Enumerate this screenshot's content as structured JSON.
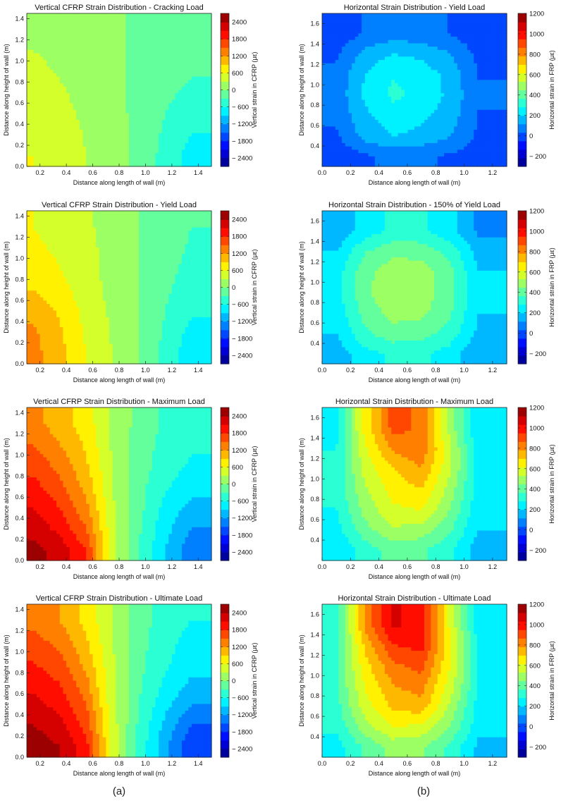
{
  "figure": {
    "captions": [
      "(a)",
      "(b)"
    ]
  },
  "chart_data": [
    {
      "type": "heatmap",
      "title": "Vertical CFRP Strain Distribution - Cracking Load",
      "xlabel": "Distance along length of wall (m)",
      "ylabel": "Distance along height of wall (m)",
      "xlim": [
        0.1,
        1.5
      ],
      "ylim": [
        0.0,
        1.45
      ],
      "xticks": [
        0.2,
        0.4,
        0.6,
        0.8,
        1.0,
        1.2,
        1.4
      ],
      "yticks": [
        0.0,
        0.2,
        0.4,
        0.6,
        0.8,
        1.0,
        1.2,
        1.4
      ],
      "colorbar": {
        "label": "Vertical strain in CFRP (με)",
        "range": [
          -2700,
          2700
        ],
        "ticks": [
          2400,
          1800,
          1200,
          600,
          0,
          -600,
          -1200,
          -1800,
          -2400
        ]
      },
      "x": [
        0.15,
        0.35,
        0.55,
        0.75,
        0.95,
        1.15,
        1.35
      ],
      "y": [
        0.1,
        0.3,
        0.5,
        0.7,
        0.9,
        1.1,
        1.3
      ],
      "z": [
        [
          600,
          450,
          300,
          150,
          -100,
          -400,
          -750
        ],
        [
          550,
          420,
          280,
          150,
          -100,
          -350,
          -600
        ],
        [
          500,
          380,
          250,
          130,
          -100,
          -300,
          -450
        ],
        [
          420,
          330,
          220,
          110,
          -100,
          -250,
          -350
        ],
        [
          350,
          280,
          200,
          100,
          -100,
          -220,
          -280
        ],
        [
          300,
          250,
          180,
          100,
          -100,
          -200,
          -250
        ],
        [
          280,
          230,
          170,
          100,
          -100,
          -200,
          -230
        ]
      ]
    },
    {
      "type": "heatmap",
      "title": "Horizontal Strain Distribution - Yield Load",
      "xlabel": "Distance along length of wall (m)",
      "ylabel": "Distance along height of wall (m)",
      "xlim": [
        0.0,
        1.3
      ],
      "ylim": [
        0.2,
        1.7
      ],
      "xticks": [
        0.0,
        0.2,
        0.4,
        0.6,
        0.8,
        1.0,
        1.2
      ],
      "yticks": [
        0.4,
        0.6,
        0.8,
        1.0,
        1.2,
        1.4,
        1.6
      ],
      "colorbar": {
        "label": "Horizontal strain in FRP (με)",
        "range": [
          -300,
          1200
        ],
        "ticks": [
          1200,
          1000,
          800,
          600,
          400,
          200,
          0,
          -200
        ]
      },
      "x": [
        0.1,
        0.3,
        0.5,
        0.7,
        0.9,
        1.1
      ],
      "y": [
        0.3,
        0.5,
        0.7,
        0.9,
        1.1,
        1.3,
        1.5
      ],
      "z": [
        [
          -20,
          20,
          60,
          50,
          20,
          -10
        ],
        [
          20,
          150,
          200,
          180,
          120,
          20
        ],
        [
          50,
          180,
          250,
          220,
          160,
          30
        ],
        [
          60,
          220,
          300,
          260,
          180,
          40
        ],
        [
          50,
          200,
          280,
          250,
          170,
          30
        ],
        [
          20,
          150,
          200,
          180,
          120,
          10
        ],
        [
          -30,
          40,
          80,
          60,
          30,
          -20
        ]
      ]
    },
    {
      "type": "heatmap",
      "title": "Vertical CFRP Strain Distribution - Yield Load",
      "xlabel": "Distance along length of wall (m)",
      "ylabel": "Distance along height of wall (m)",
      "xlim": [
        0.1,
        1.5
      ],
      "ylim": [
        0.0,
        1.45
      ],
      "xticks": [
        0.2,
        0.4,
        0.6,
        0.8,
        1.0,
        1.2,
        1.4
      ],
      "yticks": [
        0.0,
        0.2,
        0.4,
        0.6,
        0.8,
        1.0,
        1.2,
        1.4
      ],
      "colorbar": {
        "label": "Vertical strain in CFRP (με)",
        "range": [
          -2700,
          2700
        ],
        "ticks": [
          2400,
          1800,
          1200,
          600,
          0,
          -600,
          -1200,
          -1800,
          -2400
        ]
      },
      "x": [
        0.15,
        0.35,
        0.55,
        0.75,
        0.95,
        1.15,
        1.35
      ],
      "y": [
        0.1,
        0.3,
        0.5,
        0.7,
        0.9,
        1.1,
        1.3
      ],
      "z": [
        [
          1300,
          1000,
          600,
          300,
          0,
          -400,
          -800
        ],
        [
          1250,
          950,
          550,
          250,
          0,
          -350,
          -700
        ],
        [
          1100,
          850,
          500,
          250,
          0,
          -300,
          -550
        ],
        [
          900,
          700,
          450,
          200,
          0,
          -250,
          -450
        ],
        [
          750,
          600,
          400,
          200,
          0,
          -220,
          -380
        ],
        [
          650,
          550,
          380,
          200,
          0,
          -200,
          -330
        ],
        [
          600,
          500,
          350,
          180,
          0,
          -200,
          -300
        ]
      ]
    },
    {
      "type": "heatmap",
      "title": "Horizontal Strain Distribution - 150% of Yield Load",
      "xlabel": "Distance along length of wall (m)",
      "ylabel": "Distance along height of wall (m)",
      "xlim": [
        0.0,
        1.3
      ],
      "ylim": [
        0.2,
        1.7
      ],
      "xticks": [
        0.0,
        0.2,
        0.4,
        0.6,
        0.8,
        1.0,
        1.2
      ],
      "yticks": [
        0.4,
        0.6,
        0.8,
        1.0,
        1.2,
        1.4,
        1.6
      ],
      "colorbar": {
        "label": "Horizontal strain in FRP (με)",
        "range": [
          -300,
          1200
        ],
        "ticks": [
          1200,
          1000,
          800,
          600,
          400,
          200,
          0,
          -200
        ]
      },
      "x": [
        0.1,
        0.3,
        0.5,
        0.7,
        0.9,
        1.1
      ],
      "y": [
        0.3,
        0.5,
        0.7,
        0.9,
        1.1,
        1.3,
        1.5
      ],
      "z": [
        [
          150,
          250,
          300,
          300,
          250,
          120
        ],
        [
          200,
          350,
          420,
          400,
          330,
          180
        ],
        [
          230,
          400,
          480,
          470,
          380,
          200
        ],
        [
          250,
          430,
          520,
          500,
          400,
          220
        ],
        [
          240,
          420,
          500,
          490,
          390,
          200
        ],
        [
          200,
          360,
          430,
          420,
          340,
          170
        ],
        [
          130,
          240,
          300,
          300,
          230,
          100
        ]
      ]
    },
    {
      "type": "heatmap",
      "title": "Vertical CFRP Strain Distribution - Maximum Load",
      "xlabel": "Distance along length of wall (m)",
      "ylabel": "Distance along height of wall (m)",
      "xlim": [
        0.1,
        1.5
      ],
      "ylim": [
        0.0,
        1.45
      ],
      "xticks": [
        0.2,
        0.4,
        0.6,
        0.8,
        1.0,
        1.2,
        1.4
      ],
      "yticks": [
        0.0,
        0.2,
        0.4,
        0.6,
        0.8,
        1.0,
        1.2,
        1.4
      ],
      "colorbar": {
        "label": "Vertical strain in CFRP (με)",
        "range": [
          -2700,
          2700
        ],
        "ticks": [
          2400,
          1800,
          1200,
          600,
          0,
          -600,
          -1200,
          -1800,
          -2400
        ]
      },
      "x": [
        0.15,
        0.35,
        0.55,
        0.75,
        0.95,
        1.15,
        1.35
      ],
      "y": [
        0.1,
        0.3,
        0.5,
        0.7,
        0.9,
        1.1,
        1.3
      ],
      "z": [
        [
          2500,
          2300,
          1800,
          400,
          -300,
          -900,
          -1400
        ],
        [
          2300,
          2000,
          1500,
          400,
          -250,
          -800,
          -1200
        ],
        [
          2100,
          1800,
          1300,
          350,
          -200,
          -700,
          -1000
        ],
        [
          1900,
          1600,
          1100,
          300,
          -200,
          -550,
          -800
        ],
        [
          1700,
          1400,
          950,
          300,
          -150,
          -450,
          -650
        ],
        [
          1500,
          1200,
          850,
          250,
          -150,
          -400,
          -550
        ],
        [
          1300,
          1050,
          750,
          250,
          -100,
          -350,
          -500
        ]
      ]
    },
    {
      "type": "heatmap",
      "title": "Horizontal Strain Distribution - Maximum Load",
      "xlabel": "Distance along length of wall (m)",
      "ylabel": "Distance along height of wall (m)",
      "xlim": [
        0.0,
        1.3
      ],
      "ylim": [
        0.2,
        1.7
      ],
      "xticks": [
        0.0,
        0.2,
        0.4,
        0.6,
        0.8,
        1.0,
        1.2
      ],
      "yticks": [
        0.4,
        0.6,
        0.8,
        1.0,
        1.2,
        1.4,
        1.6
      ],
      "colorbar": {
        "label": "Horizontal strain in FRP (με)",
        "range": [
          -300,
          1200
        ],
        "ticks": [
          1200,
          1000,
          800,
          600,
          400,
          200,
          0,
          -200
        ]
      },
      "x": [
        0.1,
        0.3,
        0.5,
        0.7,
        0.9,
        1.1
      ],
      "y": [
        0.3,
        0.5,
        0.7,
        0.9,
        1.1,
        1.3,
        1.5
      ],
      "z": [
        [
          200,
          320,
          400,
          380,
          300,
          150
        ],
        [
          250,
          420,
          520,
          500,
          380,
          200
        ],
        [
          280,
          480,
          600,
          620,
          450,
          220
        ],
        [
          300,
          520,
          650,
          700,
          500,
          240
        ],
        [
          300,
          560,
          700,
          780,
          550,
          250
        ],
        [
          280,
          600,
          800,
          850,
          560,
          230
        ],
        [
          250,
          650,
          900,
          850,
          500,
          200
        ]
      ]
    },
    {
      "type": "heatmap",
      "title": "Vertical CFRP Strain Distribution - Ultimate Load",
      "xlabel": "Distance along length of wall (m)",
      "ylabel": "Distance along height of wall (m)",
      "xlim": [
        0.1,
        1.5
      ],
      "ylim": [
        0.0,
        1.45
      ],
      "xticks": [
        0.2,
        0.4,
        0.6,
        0.8,
        1.0,
        1.2,
        1.4
      ],
      "yticks": [
        0.0,
        0.2,
        0.4,
        0.6,
        0.8,
        1.0,
        1.2,
        1.4
      ],
      "colorbar": {
        "label": "Vertical strain in CFRP (με)",
        "range": [
          -2700,
          2700
        ],
        "ticks": [
          2400,
          1800,
          1200,
          600,
          0,
          -600,
          -1200,
          -1800,
          -2400
        ]
      },
      "x": [
        0.15,
        0.35,
        0.55,
        0.75,
        0.95,
        1.15,
        1.35
      ],
      "y": [
        0.1,
        0.3,
        0.5,
        0.7,
        0.9,
        1.1,
        1.3
      ],
      "z": [
        [
          2600,
          2400,
          1900,
          500,
          -400,
          -1100,
          -1800
        ],
        [
          2400,
          2200,
          1700,
          450,
          -350,
          -1000,
          -1500
        ],
        [
          2200,
          2000,
          1500,
          400,
          -300,
          -800,
          -1200
        ],
        [
          2000,
          1800,
          1300,
          350,
          -250,
          -650,
          -950
        ],
        [
          1800,
          1600,
          1100,
          350,
          -200,
          -550,
          -800
        ],
        [
          1600,
          1400,
          950,
          300,
          -200,
          -500,
          -700
        ],
        [
          1400,
          1200,
          800,
          300,
          -150,
          -450,
          -600
        ]
      ]
    },
    {
      "type": "heatmap",
      "title": "Horizontal Strain Distribution - Ultimate Load",
      "xlabel": "Distance along length of wall (m)",
      "ylabel": "Distance along height of wall (m)",
      "xlim": [
        0.0,
        1.3
      ],
      "ylim": [
        0.2,
        1.7
      ],
      "xticks": [
        0.0,
        0.2,
        0.4,
        0.6,
        0.8,
        1.0,
        1.2
      ],
      "yticks": [
        0.4,
        0.6,
        0.8,
        1.0,
        1.2,
        1.4,
        1.6
      ],
      "colorbar": {
        "label": "Horizontal strain in FRP (με)",
        "range": [
          -300,
          1200
        ],
        "ticks": [
          1200,
          1000,
          800,
          600,
          400,
          200,
          0,
          -200
        ]
      },
      "x": [
        0.1,
        0.3,
        0.5,
        0.7,
        0.9,
        1.1
      ],
      "y": [
        0.3,
        0.5,
        0.7,
        0.9,
        1.1,
        1.3,
        1.5
      ],
      "z": [
        [
          250,
          380,
          480,
          460,
          350,
          180
        ],
        [
          300,
          500,
          620,
          600,
          450,
          230
        ],
        [
          330,
          580,
          720,
          750,
          520,
          250
        ],
        [
          350,
          620,
          780,
          820,
          580,
          270
        ],
        [
          360,
          660,
          850,
          900,
          620,
          280
        ],
        [
          340,
          720,
          950,
          980,
          640,
          260
        ],
        [
          300,
          800,
          1050,
          1000,
          600,
          230
        ]
      ]
    }
  ]
}
